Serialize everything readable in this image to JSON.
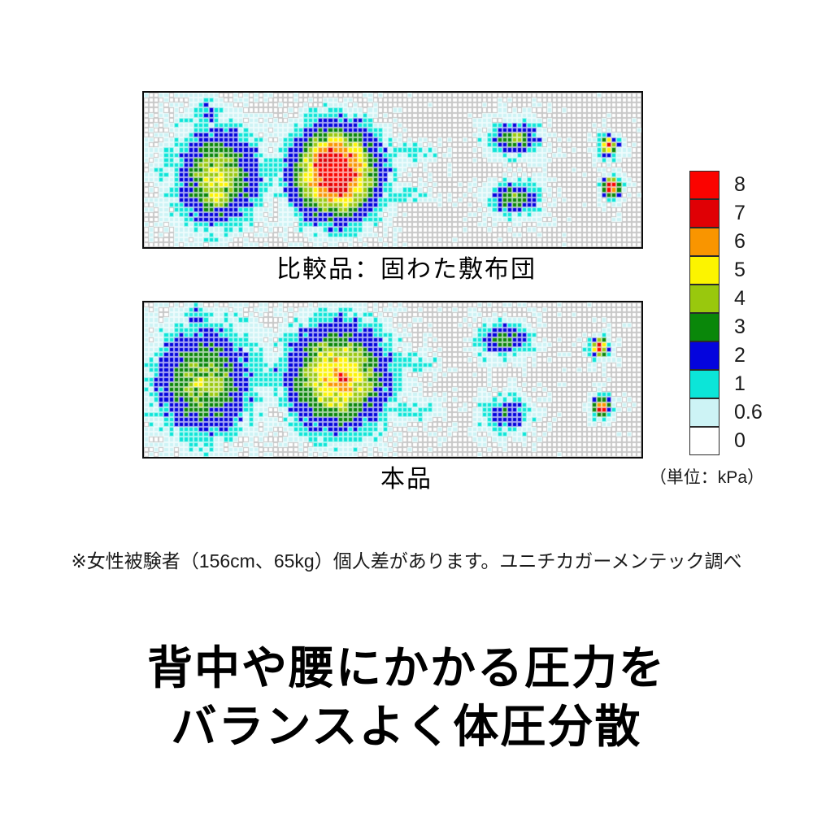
{
  "page": {
    "background": "#ffffff"
  },
  "figure": {
    "maps": [
      {
        "id": "comparison",
        "title": "比較品：固わた敷布団"
      },
      {
        "id": "product",
        "title": "本品"
      }
    ],
    "legend": {
      "unit_label": "（単位：kPa）",
      "entries": [
        {
          "label": "8",
          "color": "#fb0300"
        },
        {
          "label": "7",
          "color": "#e00005"
        },
        {
          "label": "6",
          "color": "#f99500"
        },
        {
          "label": "5",
          "color": "#fcf400"
        },
        {
          "label": "4",
          "color": "#99c80d"
        },
        {
          "label": "3",
          "color": "#0a870a"
        },
        {
          "label": "2",
          "color": "#0404dd"
        },
        {
          "label": "1",
          "color": "#0ce5d8"
        },
        {
          "label": "0.6",
          "color": "#cdf3f5"
        },
        {
          "label": "0",
          "color": "#ffffff"
        }
      ]
    },
    "footnote": "※女性被験者（156cm、65kg）個人差があります。ユニチカガーメンテック調べ"
  },
  "headline": {
    "line1": "背中や腰にかかる圧力を",
    "line2": "バランスよく体圧分散"
  },
  "chart_data": [
    {
      "type": "heatmap",
      "title": "比較品：固わた敷布団",
      "unit": "kPa",
      "grid": {
        "cols": 100,
        "rows": 31
      },
      "value_levels": [
        0,
        0.6,
        1,
        2,
        3,
        4,
        5,
        6,
        7,
        8
      ],
      "quantize_thresholds": [
        0.25,
        0.7,
        1.3,
        2.5,
        3.5,
        4.5,
        5.5,
        6.5,
        7.5
      ],
      "palette": [
        "#ffffff",
        "#cdf3f5",
        "#0ce5d8",
        "#0404dd",
        "#0a870a",
        "#99c80d",
        "#fcf400",
        "#f99500",
        "#e00005",
        "#fb0300"
      ],
      "grid_line_color": "#c7c7c7",
      "seed": 7,
      "blob_format": [
        "col",
        "row",
        "rx",
        "ry",
        "peak_kpa"
      ],
      "blobs": [
        [
          14.5,
          16.5,
          7.2,
          8.5,
          4.6
        ],
        [
          14.0,
          20.0,
          2.8,
          3.0,
          5.7
        ],
        [
          14.0,
          15.5,
          10.5,
          11.5,
          1.6
        ],
        [
          12.0,
          4.0,
          3.2,
          4.5,
          1.25
        ],
        [
          3.5,
          16.0,
          3.5,
          3.2,
          0.95
        ],
        [
          13.5,
          26.0,
          3.0,
          3.5,
          1.05
        ],
        [
          27.0,
          14.0,
          4.5,
          3.5,
          1.25
        ],
        [
          38.0,
          15.5,
          7.5,
          8.0,
          8.7
        ],
        [
          37.5,
          15.5,
          10.5,
          10.5,
          1.8
        ],
        [
          36.0,
          23.0,
          4.5,
          3.2,
          2.1
        ],
        [
          53.0,
          11.5,
          6.5,
          2.2,
          0.95
        ],
        [
          52.0,
          20.0,
          6.5,
          2.2,
          0.95
        ],
        [
          74.0,
          8.7,
          4.6,
          2.9,
          3.4
        ],
        [
          74.0,
          8.7,
          6.6,
          4.4,
          1.35
        ],
        [
          74.0,
          20.7,
          4.2,
          2.9,
          3.4
        ],
        [
          74.0,
          20.7,
          6.2,
          4.4,
          1.35
        ],
        [
          93.0,
          10.2,
          1.5,
          1.7,
          6.9
        ],
        [
          93.0,
          10.2,
          2.7,
          2.9,
          1.45
        ],
        [
          93.5,
          18.5,
          1.5,
          1.7,
          8.4
        ],
        [
          93.5,
          18.5,
          2.7,
          2.9,
          1.45
        ]
      ]
    },
    {
      "type": "heatmap",
      "title": "本品",
      "unit": "kPa",
      "grid": {
        "cols": 100,
        "rows": 31
      },
      "value_levels": [
        0,
        0.6,
        1,
        2,
        3,
        4,
        5,
        6,
        7,
        8
      ],
      "quantize_thresholds": [
        0.25,
        0.7,
        1.3,
        2.5,
        3.5,
        4.5,
        5.5,
        6.5,
        7.5
      ],
      "palette": [
        "#ffffff",
        "#cdf3f5",
        "#0ce5d8",
        "#0404dd",
        "#0a870a",
        "#99c80d",
        "#fcf400",
        "#f99500",
        "#e00005",
        "#fb0300"
      ],
      "grid_line_color": "#c7c7c7",
      "seed": 13,
      "blob_format": [
        "col",
        "row",
        "rx",
        "ry",
        "peak_kpa"
      ],
      "blobs": [
        [
          11.5,
          15.5,
          8.8,
          9.5,
          4.1
        ],
        [
          11.0,
          15.5,
          4.2,
          4.6,
          4.5
        ],
        [
          12.0,
          15.0,
          12.0,
          12.5,
          1.65
        ],
        [
          10.0,
          3.0,
          2.6,
          4.5,
          1.35
        ],
        [
          3.0,
          18.0,
          3.0,
          4.0,
          1.1
        ],
        [
          12.0,
          27.0,
          3.0,
          3.6,
          1.15
        ],
        [
          26.0,
          14.5,
          5.0,
          3.4,
          1.3
        ],
        [
          38.5,
          14.5,
          8.8,
          9.3,
          5.9
        ],
        [
          39.5,
          14.5,
          3.0,
          3.2,
          7.3
        ],
        [
          38.5,
          14.5,
          12.0,
          11.5,
          1.7
        ],
        [
          53.0,
          11.5,
          6.5,
          2.2,
          1.0
        ],
        [
          53.0,
          21.0,
          6.5,
          2.2,
          1.0
        ],
        [
          72.0,
          6.8,
          4.5,
          2.9,
          3.2
        ],
        [
          72.0,
          7.2,
          6.4,
          4.4,
          1.35
        ],
        [
          72.5,
          22.0,
          4.2,
          2.9,
          2.45
        ],
        [
          72.5,
          22.0,
          6.2,
          4.4,
          1.35
        ],
        [
          91.0,
          8.5,
          1.5,
          1.6,
          8.3
        ],
        [
          91.0,
          8.5,
          2.7,
          2.9,
          1.5
        ],
        [
          91.5,
          20.5,
          1.5,
          1.6,
          8.3
        ],
        [
          91.5,
          20.5,
          2.7,
          2.9,
          1.5
        ]
      ]
    }
  ]
}
